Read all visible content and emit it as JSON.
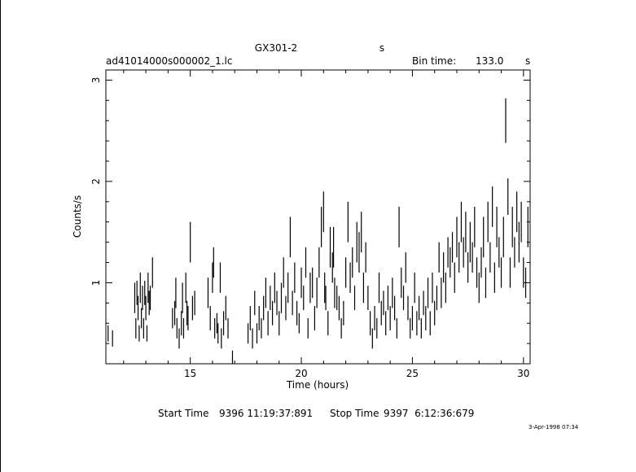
{
  "chart_data": {
    "type": "scatter",
    "title": "GX301-2",
    "title_suffix": "s",
    "filename": "ad41014000s000002_1.lc",
    "bin_time_label": "Bin time:",
    "bin_time_value": "133.0",
    "bin_time_unit": "s",
    "xlabel": "Time (hours)",
    "ylabel": "Counts/s",
    "xlim": [
      11.2,
      30.3
    ],
    "ylim": [
      0.2,
      3.1
    ],
    "x_ticks": [
      "15",
      "20",
      "25",
      "30"
    ],
    "y_ticks": [
      "1",
      "2",
      "3"
    ],
    "error_bars": "vertical",
    "series": [
      {
        "points": [
          [
            11.3,
            0.5,
            0.08
          ],
          [
            11.5,
            0.45,
            0.08
          ],
          [
            12.5,
            0.85,
            0.15
          ],
          [
            12.55,
            0.55,
            0.1
          ],
          [
            12.6,
            0.9,
            0.12
          ],
          [
            12.65,
            0.75,
            0.12
          ],
          [
            12.7,
            0.5,
            0.08
          ],
          [
            12.75,
            0.95,
            0.15
          ],
          [
            12.8,
            0.65,
            0.1
          ],
          [
            12.85,
            0.85,
            0.12
          ],
          [
            12.9,
            0.55,
            0.1
          ],
          [
            12.95,
            0.9,
            0.12
          ],
          [
            13.0,
            0.75,
            0.12
          ],
          [
            13.05,
            0.5,
            0.08
          ],
          [
            13.1,
            0.95,
            0.15
          ],
          [
            13.15,
            0.8,
            0.12
          ],
          [
            13.2,
            0.85,
            0.12
          ],
          [
            13.3,
            1.1,
            0.15
          ],
          [
            14.2,
            0.65,
            0.1
          ],
          [
            14.3,
            0.7,
            0.12
          ],
          [
            14.35,
            0.9,
            0.15
          ],
          [
            14.4,
            0.55,
            0.1
          ],
          [
            14.5,
            0.45,
            0.1
          ],
          [
            14.6,
            0.6,
            0.12
          ],
          [
            14.65,
            0.85,
            0.15
          ],
          [
            14.7,
            0.55,
            0.1
          ],
          [
            14.8,
            0.95,
            0.15
          ],
          [
            14.85,
            0.7,
            0.12
          ],
          [
            14.9,
            0.65,
            0.12
          ],
          [
            15.0,
            1.4,
            0.2
          ],
          [
            15.1,
            0.75,
            0.12
          ],
          [
            15.2,
            0.8,
            0.12
          ],
          [
            15.8,
            0.9,
            0.15
          ],
          [
            15.9,
            0.65,
            0.12
          ],
          [
            16.0,
            1.05,
            0.15
          ],
          [
            16.05,
            1.2,
            0.15
          ],
          [
            16.1,
            0.55,
            0.1
          ],
          [
            16.2,
            0.6,
            0.1
          ],
          [
            16.25,
            0.5,
            0.1
          ],
          [
            16.35,
            1.05,
            0.15
          ],
          [
            16.4,
            0.45,
            0.1
          ],
          [
            16.5,
            0.6,
            0.12
          ],
          [
            16.6,
            0.75,
            0.12
          ],
          [
            16.7,
            0.55,
            0.1
          ],
          [
            16.9,
            0.25,
            0.08
          ],
          [
            17.6,
            0.5,
            0.1
          ],
          [
            17.7,
            0.65,
            0.12
          ],
          [
            17.8,
            0.45,
            0.1
          ],
          [
            17.9,
            0.8,
            0.12
          ],
          [
            18.0,
            0.5,
            0.1
          ],
          [
            18.1,
            0.65,
            0.12
          ],
          [
            18.2,
            0.55,
            0.1
          ],
          [
            18.3,
            0.75,
            0.12
          ],
          [
            18.4,
            0.9,
            0.15
          ],
          [
            18.5,
            0.6,
            0.12
          ],
          [
            18.6,
            0.85,
            0.12
          ],
          [
            18.7,
            0.7,
            0.12
          ],
          [
            18.8,
            0.95,
            0.15
          ],
          [
            18.9,
            0.8,
            0.12
          ],
          [
            19.0,
            0.6,
            0.12
          ],
          [
            19.1,
            0.85,
            0.15
          ],
          [
            19.2,
            1.1,
            0.15
          ],
          [
            19.3,
            0.75,
            0.12
          ],
          [
            19.4,
            0.95,
            0.15
          ],
          [
            19.5,
            1.45,
            0.2
          ],
          [
            19.6,
            0.8,
            0.12
          ],
          [
            19.7,
            1.05,
            0.15
          ],
          [
            19.8,
            0.7,
            0.12
          ],
          [
            19.9,
            0.6,
            0.1
          ],
          [
            20.0,
            1.0,
            0.15
          ],
          [
            20.1,
            0.85,
            0.12
          ],
          [
            20.2,
            1.2,
            0.15
          ],
          [
            20.3,
            0.55,
            0.1
          ],
          [
            20.4,
            0.95,
            0.15
          ],
          [
            20.5,
            1.0,
            0.15
          ],
          [
            20.6,
            0.65,
            0.12
          ],
          [
            20.7,
            0.9,
            0.15
          ],
          [
            20.8,
            1.2,
            0.15
          ],
          [
            20.9,
            1.55,
            0.2
          ],
          [
            21.0,
            1.7,
            0.2
          ],
          [
            21.05,
            0.95,
            0.15
          ],
          [
            21.1,
            0.85,
            0.12
          ],
          [
            21.2,
            0.6,
            0.12
          ],
          [
            21.3,
            1.35,
            0.2
          ],
          [
            21.4,
            1.15,
            0.15
          ],
          [
            21.45,
            1.35,
            0.2
          ],
          [
            21.5,
            0.9,
            0.15
          ],
          [
            21.6,
            0.85,
            0.12
          ],
          [
            21.7,
            0.75,
            0.12
          ],
          [
            21.8,
            0.55,
            0.1
          ],
          [
            21.9,
            0.7,
            0.12
          ],
          [
            22.0,
            1.1,
            0.15
          ],
          [
            22.1,
            1.6,
            0.2
          ],
          [
            22.2,
            1.05,
            0.15
          ],
          [
            22.3,
            1.2,
            0.15
          ],
          [
            22.4,
            0.85,
            0.12
          ],
          [
            22.5,
            1.4,
            0.2
          ],
          [
            22.6,
            1.3,
            0.2
          ],
          [
            22.7,
            1.5,
            0.2
          ],
          [
            22.8,
            0.95,
            0.15
          ],
          [
            22.9,
            1.25,
            0.15
          ],
          [
            23.0,
            0.85,
            0.12
          ],
          [
            23.1,
            0.6,
            0.12
          ],
          [
            23.2,
            0.45,
            0.1
          ],
          [
            23.3,
            0.65,
            0.12
          ],
          [
            23.4,
            0.55,
            0.1
          ],
          [
            23.5,
            0.95,
            0.15
          ],
          [
            23.6,
            0.7,
            0.12
          ],
          [
            23.7,
            0.8,
            0.12
          ],
          [
            23.8,
            0.6,
            0.12
          ],
          [
            23.9,
            0.85,
            0.12
          ],
          [
            24.0,
            0.65,
            0.12
          ],
          [
            24.1,
            0.9,
            0.15
          ],
          [
            24.2,
            0.75,
            0.12
          ],
          [
            24.3,
            0.55,
            0.1
          ],
          [
            24.4,
            1.55,
            0.2
          ],
          [
            24.5,
            1.0,
            0.15
          ],
          [
            24.6,
            0.85,
            0.12
          ],
          [
            24.7,
            1.15,
            0.15
          ],
          [
            24.8,
            0.75,
            0.12
          ],
          [
            24.9,
            0.55,
            0.1
          ],
          [
            25.0,
            0.65,
            0.12
          ],
          [
            25.1,
            0.95,
            0.15
          ],
          [
            25.2,
            0.6,
            0.12
          ],
          [
            25.3,
            0.75,
            0.12
          ],
          [
            25.4,
            0.55,
            0.1
          ],
          [
            25.5,
            0.8,
            0.12
          ],
          [
            25.6,
            0.65,
            0.12
          ],
          [
            25.7,
            0.9,
            0.15
          ],
          [
            25.8,
            0.6,
            0.12
          ],
          [
            25.9,
            0.95,
            0.15
          ],
          [
            26.0,
            0.7,
            0.12
          ],
          [
            26.1,
            0.85,
            0.12
          ],
          [
            26.2,
            1.25,
            0.15
          ],
          [
            26.3,
            0.9,
            0.15
          ],
          [
            26.4,
            1.15,
            0.15
          ],
          [
            26.5,
            0.95,
            0.15
          ],
          [
            26.6,
            1.3,
            0.15
          ],
          [
            26.7,
            1.2,
            0.15
          ],
          [
            26.8,
            1.35,
            0.15
          ],
          [
            26.9,
            1.05,
            0.15
          ],
          [
            27.0,
            1.45,
            0.2
          ],
          [
            27.1,
            1.25,
            0.15
          ],
          [
            27.2,
            1.6,
            0.2
          ],
          [
            27.3,
            1.3,
            0.15
          ],
          [
            27.4,
            1.5,
            0.2
          ],
          [
            27.5,
            1.15,
            0.15
          ],
          [
            27.6,
            1.4,
            0.2
          ],
          [
            27.7,
            1.25,
            0.15
          ],
          [
            27.8,
            1.55,
            0.2
          ],
          [
            27.9,
            1.1,
            0.15
          ],
          [
            28.0,
            0.95,
            0.15
          ],
          [
            28.1,
            1.2,
            0.15
          ],
          [
            28.2,
            1.45,
            0.2
          ],
          [
            28.3,
            1.0,
            0.15
          ],
          [
            28.4,
            1.6,
            0.2
          ],
          [
            28.5,
            1.25,
            0.15
          ],
          [
            28.6,
            1.75,
            0.2
          ],
          [
            28.7,
            1.05,
            0.15
          ],
          [
            28.8,
            1.55,
            0.2
          ],
          [
            28.9,
            1.3,
            0.15
          ],
          [
            29.0,
            1.1,
            0.15
          ],
          [
            29.1,
            1.45,
            0.2
          ],
          [
            29.2,
            2.6,
            0.22
          ],
          [
            29.3,
            1.85,
            0.18
          ],
          [
            29.4,
            1.1,
            0.15
          ],
          [
            29.5,
            1.55,
            0.2
          ],
          [
            29.6,
            1.3,
            0.15
          ],
          [
            29.7,
            1.7,
            0.2
          ],
          [
            29.8,
            1.4,
            0.2
          ],
          [
            29.9,
            1.6,
            0.2
          ],
          [
            30.0,
            1.1,
            0.15
          ],
          [
            30.1,
            1.0,
            0.15
          ],
          [
            30.2,
            1.55,
            0.2
          ]
        ]
      }
    ]
  },
  "footer": {
    "start_label": "Start Time",
    "start_value": "9396 11:19:37:891",
    "stop_label": "Stop Time",
    "stop_value": "9397  6:12:36:679",
    "date_stamp": "3-Apr-1998 07:34"
  }
}
